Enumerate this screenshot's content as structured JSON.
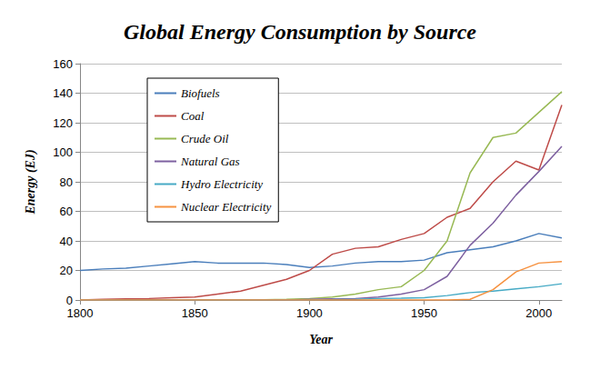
{
  "chart_data": {
    "type": "line",
    "title": "Global Energy Consumption by Source",
    "x_label": "Year",
    "y_label": "Energy (EJ)",
    "x": [
      1800,
      1810,
      1820,
      1830,
      1840,
      1850,
      1860,
      1870,
      1880,
      1890,
      1900,
      1910,
      1920,
      1930,
      1940,
      1950,
      1960,
      1970,
      1980,
      1990,
      2000,
      2010
    ],
    "series": [
      {
        "name": "Biofuels",
        "color": "#4a7ebb",
        "values": [
          20,
          21,
          21.5,
          23,
          24.5,
          26,
          25,
          25,
          25,
          24,
          22,
          23,
          25,
          26,
          26,
          27,
          32,
          34,
          36,
          40,
          45,
          42
        ]
      },
      {
        "name": "Coal",
        "color": "#be4b48",
        "values": [
          0,
          0.5,
          0.8,
          1,
          1.5,
          2,
          4,
          6,
          10,
          14,
          20,
          31,
          35,
          36,
          41,
          45,
          56,
          62,
          80,
          94,
          88,
          132
        ]
      },
      {
        "name": "Crude Oil",
        "color": "#98b954",
        "values": [
          0,
          0,
          0,
          0,
          0,
          0,
          0,
          0,
          0.2,
          0.5,
          1,
          2,
          4,
          7,
          9,
          20,
          40,
          86,
          110,
          113,
          127,
          141
        ]
      },
      {
        "name": "Natural Gas",
        "color": "#7d60a0",
        "values": [
          0,
          0,
          0,
          0,
          0,
          0,
          0,
          0,
          0,
          0,
          0.5,
          0.8,
          1,
          2,
          4,
          7,
          16,
          37,
          52,
          71,
          87,
          104
        ]
      },
      {
        "name": "Hydro Electricity",
        "color": "#46aac5",
        "values": [
          0,
          0,
          0,
          0,
          0,
          0,
          0,
          0,
          0,
          0,
          0.2,
          0.3,
          0.5,
          1,
          1.2,
          1.5,
          3,
          5,
          6,
          7.5,
          9,
          11
        ]
      },
      {
        "name": "Nuclear Electricity",
        "color": "#f69240",
        "values": [
          0,
          0,
          0,
          0,
          0,
          0,
          0,
          0,
          0,
          0,
          0,
          0,
          0,
          0,
          0,
          0,
          0,
          0.5,
          7,
          19,
          25,
          26
        ]
      }
    ],
    "xlim": [
      1800,
      2010
    ],
    "xticks": [
      1800,
      1850,
      1900,
      1950,
      2000
    ],
    "ylim": [
      0,
      160
    ],
    "yticks": [
      0,
      20,
      40,
      60,
      80,
      100,
      120,
      140,
      160
    ],
    "grid": true,
    "legend": "upper left",
    "marker": "none",
    "line_style": "solid"
  }
}
